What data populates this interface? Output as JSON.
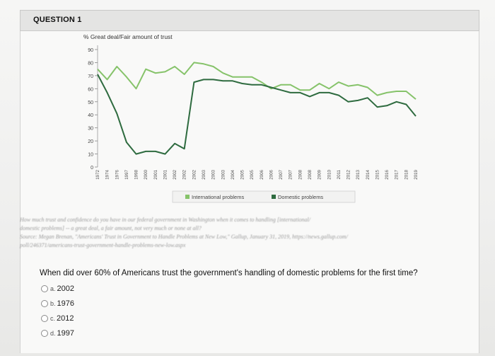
{
  "question_header": {
    "title": "QUESTION 1"
  },
  "chart_data": {
    "type": "line",
    "title": "% Great deal/Fair amount of trust",
    "y_ticks": [
      "0",
      "10",
      "20",
      "30",
      "40",
      "50",
      "60",
      "70",
      "80",
      "90"
    ],
    "ylim": [
      0,
      90
    ],
    "x": [
      "1972",
      "1974",
      "1976",
      "1997",
      "1998",
      "2000",
      "2001",
      "2001",
      "2002",
      "2002",
      "2002",
      "2003",
      "2003",
      "2003",
      "2004",
      "2005",
      "2005",
      "2006",
      "2006",
      "2007",
      "2007",
      "2008",
      "2008",
      "2009",
      "2010",
      "2011",
      "2012",
      "2013",
      "2014",
      "2015",
      "2016",
      "2017",
      "2018",
      "2019"
    ],
    "series": [
      {
        "name": "International problems",
        "color": "#86c36a",
        "values": [
          75,
          67,
          77,
          69,
          60,
          75,
          72,
          73,
          77,
          71,
          80,
          79,
          77,
          72,
          69,
          69,
          69,
          65,
          60,
          63,
          63,
          59,
          59,
          64,
          60,
          65,
          62,
          63,
          61,
          55,
          57,
          58,
          58,
          52
        ]
      },
      {
        "name": "Domestic problems",
        "color": "#2e6b3f",
        "values": [
          71,
          57,
          41,
          19,
          10,
          12,
          12,
          10,
          18,
          14,
          65,
          67,
          67,
          66,
          66,
          64,
          63,
          63,
          61,
          59,
          57,
          57,
          54,
          57,
          57,
          55,
          50,
          51,
          53,
          46,
          47,
          50,
          48,
          39
        ]
      }
    ],
    "legend": [
      {
        "label": "International problems",
        "color": "#86c36a"
      },
      {
        "label": "Domestic problems",
        "color": "#2e6b3f"
      }
    ]
  },
  "source_lines": [
    "How much trust and confidence do you have in our federal government in Washington when it comes to handling [international/",
    "domestic problems] -- a great deal, a fair amount, not very much or none at all?",
    "Source: Megan Brenan, \"Americans' Trust in Government to Handle Problems at New Low,\" Gallup, January 31, 2019, https://news.gallup.com/",
    "poll/246371/americans-trust-government-handle-problems-new-low.aspx"
  ],
  "question_text": "When did over 60% of Americans trust the government's handling of domestic problems for the first time?",
  "options": [
    {
      "letter": "a.",
      "text": "2002"
    },
    {
      "letter": "b.",
      "text": "1976"
    },
    {
      "letter": "c.",
      "text": "2012"
    },
    {
      "letter": "d.",
      "text": "1997"
    }
  ]
}
